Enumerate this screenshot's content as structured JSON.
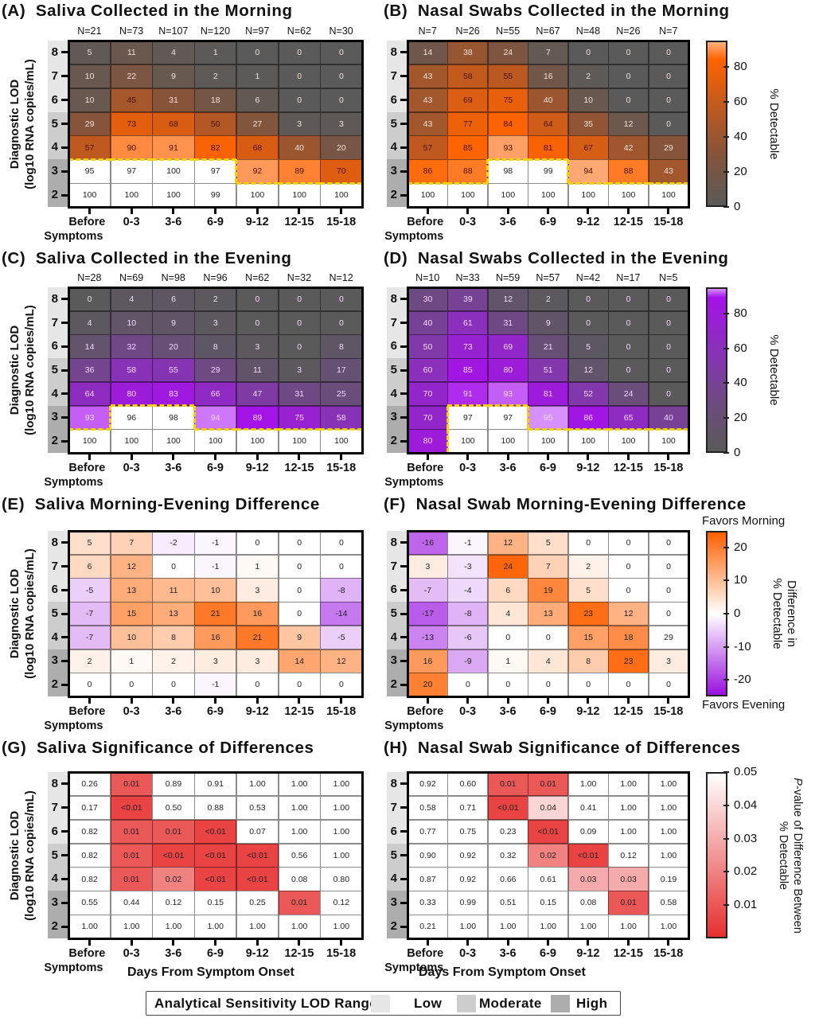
{
  "chart_data": {
    "shared": {
      "categories": [
        "Before Symptoms",
        "0-3",
        "3-6",
        "6-9",
        "9-12",
        "12-15",
        "15-18"
      ],
      "category_lines": [
        [
          "Before",
          "Symptoms"
        ],
        [
          "0-3"
        ],
        [
          "3-6"
        ],
        [
          "6-9"
        ],
        [
          "9-12"
        ],
        [
          "12-15"
        ],
        [
          "15-18"
        ]
      ],
      "y_ticks": [
        "8",
        "7",
        "6",
        "5",
        "4",
        "3",
        "2"
      ],
      "y_bands": [
        "Low",
        "Low",
        "Low",
        "Moderate",
        "Moderate",
        "High",
        "High"
      ],
      "ylabel_lines": [
        "Diagnostic LOD",
        "(log10 RNA copies/mL)"
      ],
      "xlabel": "Days From Symptom Onset"
    },
    "panels": [
      {
        "type": "heatmap",
        "letter": "(A)",
        "title": "Saliva Collected in the Morning",
        "scale": "morning",
        "n_labels": [
          "N=21",
          "N=73",
          "N=107",
          "N=120",
          "N=97",
          "N=62",
          "N=30"
        ],
        "values": [
          [
            "5",
            "11",
            "4",
            "1",
            "0",
            "0",
            "0"
          ],
          [
            "10",
            "22",
            "9",
            "2",
            "1",
            "0",
            "0"
          ],
          [
            "10",
            "45",
            "31",
            "18",
            "6",
            "0",
            "0"
          ],
          [
            "29",
            "73",
            "68",
            "50",
            "27",
            "3",
            "3"
          ],
          [
            "57",
            "90",
            "91",
            "82",
            "68",
            "40",
            "20"
          ],
          [
            "95",
            "97",
            "100",
            "97",
            "92",
            "89",
            "70"
          ],
          [
            "100",
            "100",
            "100",
            "99",
            "100",
            "100",
            "100"
          ]
        ],
        "white_mask": [
          [
            0,
            0,
            0,
            0,
            0,
            0,
            0
          ],
          [
            0,
            0,
            0,
            0,
            0,
            0,
            0
          ],
          [
            0,
            0,
            0,
            0,
            0,
            0,
            0
          ],
          [
            0,
            0,
            0,
            0,
            0,
            0,
            0
          ],
          [
            0,
            0,
            0,
            0,
            0,
            0,
            0
          ],
          [
            1,
            1,
            1,
            1,
            0,
            0,
            0
          ],
          [
            1,
            1,
            1,
            1,
            1,
            1,
            1
          ]
        ]
      },
      {
        "type": "heatmap",
        "letter": "(B)",
        "title": "Nasal Swabs Collected in the Morning",
        "scale": "morning",
        "n_labels": [
          "N=7",
          "N=26",
          "N=55",
          "N=67",
          "N=48",
          "N=26",
          "N=7"
        ],
        "values": [
          [
            "14",
            "38",
            "24",
            "7",
            "0",
            "0",
            "0"
          ],
          [
            "43",
            "58",
            "55",
            "16",
            "2",
            "0",
            "0"
          ],
          [
            "43",
            "69",
            "75",
            "40",
            "10",
            "0",
            "0"
          ],
          [
            "43",
            "77",
            "84",
            "64",
            "35",
            "12",
            "0"
          ],
          [
            "57",
            "85",
            "93",
            "81",
            "67",
            "42",
            "29"
          ],
          [
            "86",
            "88",
            "98",
            "99",
            "94",
            "88",
            "43"
          ],
          [
            "100",
            "100",
            "100",
            "100",
            "100",
            "100",
            "100"
          ]
        ],
        "white_mask": [
          [
            0,
            0,
            0,
            0,
            0,
            0,
            0
          ],
          [
            0,
            0,
            0,
            0,
            0,
            0,
            0
          ],
          [
            0,
            0,
            0,
            0,
            0,
            0,
            0
          ],
          [
            0,
            0,
            0,
            0,
            0,
            0,
            0
          ],
          [
            0,
            0,
            0,
            0,
            0,
            0,
            0
          ],
          [
            0,
            0,
            1,
            1,
            0,
            0,
            0
          ],
          [
            1,
            1,
            1,
            1,
            1,
            1,
            1
          ]
        ]
      },
      {
        "type": "heatmap",
        "letter": "(C)",
        "title": "Saliva Collected in the Evening",
        "scale": "evening",
        "n_labels": [
          "N=28",
          "N=69",
          "N=98",
          "N=96",
          "N=62",
          "N=32",
          "N=12"
        ],
        "values": [
          [
            "0",
            "4",
            "6",
            "2",
            "0",
            "0",
            "0"
          ],
          [
            "4",
            "10",
            "9",
            "3",
            "0",
            "0",
            "0"
          ],
          [
            "14",
            "32",
            "20",
            "8",
            "3",
            "0",
            "8"
          ],
          [
            "36",
            "58",
            "55",
            "29",
            "11",
            "3",
            "17"
          ],
          [
            "64",
            "80",
            "83",
            "66",
            "47",
            "31",
            "25"
          ],
          [
            "93",
            "96",
            "98",
            "94",
            "89",
            "75",
            "58"
          ],
          [
            "100",
            "100",
            "100",
            "100",
            "100",
            "100",
            "100"
          ]
        ],
        "white_mask": [
          [
            0,
            0,
            0,
            0,
            0,
            0,
            0
          ],
          [
            0,
            0,
            0,
            0,
            0,
            0,
            0
          ],
          [
            0,
            0,
            0,
            0,
            0,
            0,
            0
          ],
          [
            0,
            0,
            0,
            0,
            0,
            0,
            0
          ],
          [
            0,
            0,
            0,
            0,
            0,
            0,
            0
          ],
          [
            0,
            1,
            1,
            0,
            0,
            0,
            0
          ],
          [
            1,
            1,
            1,
            1,
            1,
            1,
            1
          ]
        ]
      },
      {
        "type": "heatmap",
        "letter": "(D)",
        "title": "Nasal Swabs Collected in the Evening",
        "scale": "evening",
        "n_labels": [
          "N=10",
          "N=33",
          "N=59",
          "N=57",
          "N=42",
          "N=17",
          "N=5"
        ],
        "values": [
          [
            "30",
            "39",
            "12",
            "2",
            "0",
            "0",
            "0"
          ],
          [
            "40",
            "61",
            "31",
            "9",
            "0",
            "0",
            "0"
          ],
          [
            "50",
            "73",
            "69",
            "21",
            "5",
            "0",
            "0"
          ],
          [
            "60",
            "85",
            "80",
            "51",
            "12",
            "0",
            "0"
          ],
          [
            "70",
            "91",
            "93",
            "81",
            "52",
            "24",
            "0"
          ],
          [
            "70",
            "97",
            "97",
            "95",
            "86",
            "65",
            "40"
          ],
          [
            "80",
            "100",
            "100",
            "100",
            "100",
            "100",
            "100"
          ]
        ],
        "white_mask": [
          [
            0,
            0,
            0,
            0,
            0,
            0,
            0
          ],
          [
            0,
            0,
            0,
            0,
            0,
            0,
            0
          ],
          [
            0,
            0,
            0,
            0,
            0,
            0,
            0
          ],
          [
            0,
            0,
            0,
            0,
            0,
            0,
            0
          ],
          [
            0,
            0,
            0,
            0,
            0,
            0,
            0
          ],
          [
            0,
            1,
            1,
            0,
            0,
            0,
            0
          ],
          [
            0,
            1,
            1,
            1,
            1,
            1,
            1
          ]
        ]
      },
      {
        "type": "heatmap",
        "letter": "(E)",
        "title": "Saliva Morning-Evening Difference",
        "scale": "difference",
        "values": [
          [
            "5",
            "7",
            "-2",
            "-1",
            "0",
            "0",
            "0"
          ],
          [
            "6",
            "12",
            "0",
            "-1",
            "1",
            "0",
            "0"
          ],
          [
            "-5",
            "13",
            "11",
            "10",
            "3",
            "0",
            "-8"
          ],
          [
            "-7",
            "15",
            "13",
            "21",
            "16",
            "0",
            "-14"
          ],
          [
            "-7",
            "10",
            "8",
            "16",
            "21",
            "9",
            "-5"
          ],
          [
            "2",
            "1",
            "2",
            "3",
            "3",
            "14",
            "12"
          ],
          [
            "0",
            "0",
            "0",
            "-1",
            "0",
            "0",
            "0"
          ]
        ]
      },
      {
        "type": "heatmap",
        "letter": "(F)",
        "title": "Nasal Swab Morning-Evening Difference",
        "scale": "difference",
        "values": [
          [
            "-16",
            "-1",
            "12",
            "5",
            "0",
            "0",
            "0"
          ],
          [
            "3",
            "-3",
            "24",
            "7",
            "2",
            "0",
            "0"
          ],
          [
            "-7",
            "-4",
            "6",
            "19",
            "5",
            "0",
            "0"
          ],
          [
            "-17",
            "-8",
            "4",
            "13",
            "23",
            "12",
            "0"
          ],
          [
            "-13",
            "-6",
            "0",
            "0",
            "15",
            "18",
            "29"
          ],
          [
            "16",
            "-9",
            "1",
            "4",
            "8",
            "23",
            "3"
          ],
          [
            "20",
            "0",
            "0",
            "0",
            "0",
            "0",
            "0"
          ]
        ]
      },
      {
        "type": "heatmap",
        "letter": "(G)",
        "title": "Saliva Significance of Differences",
        "scale": "pvalue",
        "values": [
          [
            "0.26",
            "0.01",
            "0.89",
            "0.91",
            "1.00",
            "1.00",
            "1.00"
          ],
          [
            "0.17",
            "<0.01",
            "0.50",
            "0.88",
            "0.53",
            "1.00",
            "1.00"
          ],
          [
            "0.82",
            "0.01",
            "0.01",
            "<0.01",
            "0.07",
            "1.00",
            "1.00"
          ],
          [
            "0.82",
            "0.01",
            "<0.01",
            "<0.01",
            "<0.01",
            "0.56",
            "1.00"
          ],
          [
            "0.82",
            "0.01",
            "0.02",
            "<0.01",
            "<0.01",
            "0.08",
            "0.80"
          ],
          [
            "0.55",
            "0.44",
            "0.12",
            "0.15",
            "0.25",
            "0.01",
            "0.12"
          ],
          [
            "1.00",
            "1.00",
            "1.00",
            "1.00",
            "1.00",
            "1.00",
            "1.00"
          ]
        ]
      },
      {
        "type": "heatmap",
        "letter": "(H)",
        "title": "Nasal Swab Significance of Differences",
        "scale": "pvalue",
        "values": [
          [
            "0.92",
            "0.60",
            "0.01",
            "0.01",
            "1.00",
            "1.00",
            "1.00"
          ],
          [
            "0.58",
            "0.71",
            "<0.01",
            "0.04",
            "0.41",
            "1.00",
            "1.00"
          ],
          [
            "0.77",
            "0.75",
            "0.23",
            "<0.01",
            "0.09",
            "1.00",
            "1.00"
          ],
          [
            "0.90",
            "0.92",
            "0.32",
            "0.02",
            "<0.01",
            "0.12",
            "1.00"
          ],
          [
            "0.87",
            "0.92",
            "0.66",
            "0.61",
            "0.03",
            "0.03",
            "0.19"
          ],
          [
            "0.33",
            "0.99",
            "0.51",
            "0.15",
            "0.08",
            "0.01",
            "0.58"
          ],
          [
            "0.21",
            "1.00",
            "1.00",
            "1.00",
            "1.00",
            "1.00",
            "1.00"
          ]
        ]
      }
    ],
    "colorbars": {
      "morning": {
        "range": [
          0,
          95
        ],
        "ticks": [
          "0",
          "20",
          "40",
          "60",
          "80"
        ],
        "label": "% Detectable",
        "low_color": "#5a5a5a",
        "high_color": "#ff6400"
      },
      "evening": {
        "range": [
          0,
          95
        ],
        "ticks": [
          "0",
          "20",
          "40",
          "60",
          "80"
        ],
        "label": "% Detectable",
        "low_color": "#5a5a5a",
        "high_color": "#a512e8"
      },
      "difference": {
        "range": [
          -25,
          25
        ],
        "ticks": [
          "-20",
          "-10",
          "0",
          "10",
          "20"
        ],
        "label_lines": [
          "Difference in",
          "% Detectable"
        ],
        "top_label": "Favors Morning",
        "bottom_label": "Favors Evening",
        "low_color": "#9a10e0",
        "mid_color": "#ffffff",
        "high_color": "#ff6000"
      },
      "pvalue": {
        "range": [
          0,
          0.05
        ],
        "ticks": [
          "0.01",
          "0.02",
          "0.03",
          "0.04",
          "0.05"
        ],
        "label_p": "P",
        "label_lines": [
          "-value of Difference Between",
          "% Detectable"
        ],
        "low_color": "#e62e2e",
        "high_color": "#ffffff"
      }
    }
  },
  "legend": {
    "title": "Analytical Sensitivity LOD Range",
    "items": [
      {
        "label": "Low",
        "color": "#e6e6e6"
      },
      {
        "label": "Moderate",
        "color": "#cdcdcd"
      },
      {
        "label": "High",
        "color": "#adadad"
      }
    ]
  }
}
